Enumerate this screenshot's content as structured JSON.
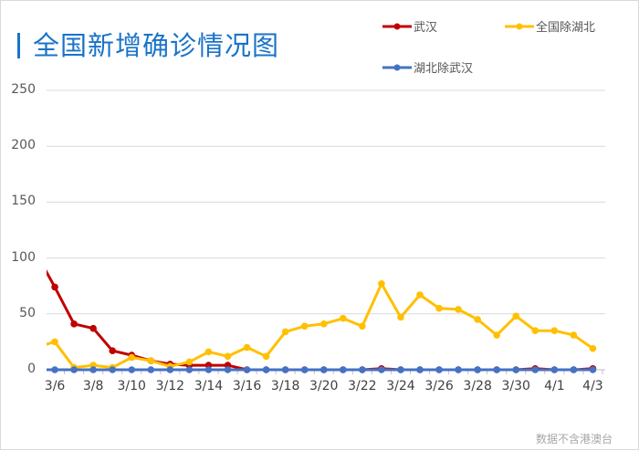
{
  "header": {
    "title": "全国新增确诊情况图"
  },
  "footer": {
    "note": "数据不含港澳台"
  },
  "legend": [
    {
      "label": "武汉",
      "color": "#c00000"
    },
    {
      "label": "全国除湖北",
      "color": "#ffc000"
    },
    {
      "label": "湖北除武汉",
      "color": "#4472c4"
    }
  ],
  "chart_data": {
    "type": "line",
    "title": "全国新增确诊情况图",
    "xlabel": "",
    "ylabel": "",
    "ylim": [
      0,
      250
    ],
    "yticks": [
      0,
      50,
      100,
      150,
      200,
      250
    ],
    "grid": true,
    "legend_position": "top-right",
    "x": [
      "3/5",
      "3/6",
      "3/7",
      "3/8",
      "3/9",
      "3/10",
      "3/11",
      "3/12",
      "3/13",
      "3/14",
      "3/15",
      "3/16",
      "3/17",
      "3/18",
      "3/19",
      "3/20",
      "3/21",
      "3/22",
      "3/23",
      "3/24",
      "3/25",
      "3/26",
      "3/27",
      "3/28",
      "3/29",
      "3/30",
      "3/31",
      "4/1",
      "4/2",
      "4/3"
    ],
    "xtick_labels": [
      "3/6",
      "3/8",
      "3/10",
      "3/12",
      "3/14",
      "3/16",
      "3/18",
      "3/20",
      "3/22",
      "3/24",
      "3/26",
      "3/28",
      "3/30",
      "4/1",
      "4/3"
    ],
    "series": [
      {
        "name": "武汉",
        "color": "#c00000",
        "values": [
          105,
          74,
          41,
          37,
          17,
          13,
          8,
          5,
          4,
          4,
          4,
          0,
          0,
          0,
          0,
          0,
          0,
          0,
          1,
          0,
          0,
          0,
          0,
          0,
          0,
          0,
          1,
          0,
          0,
          1
        ]
      },
      {
        "name": "全国除湖北",
        "color": "#ffc000",
        "values": [
          20,
          25,
          2,
          4,
          2,
          11,
          8,
          3,
          7,
          16,
          12,
          20,
          12,
          34,
          39,
          41,
          46,
          39,
          77,
          47,
          67,
          55,
          54,
          45,
          31,
          48,
          35,
          35,
          31,
          19
        ]
      },
      {
        "name": "湖北除武汉",
        "color": "#4472c4",
        "values": [
          0,
          0,
          0,
          0,
          0,
          0,
          0,
          0,
          0,
          0,
          0,
          0,
          0,
          0,
          0,
          0,
          0,
          0,
          0,
          0,
          0,
          0,
          0,
          0,
          0,
          0,
          0,
          0,
          0,
          0
        ]
      }
    ]
  }
}
